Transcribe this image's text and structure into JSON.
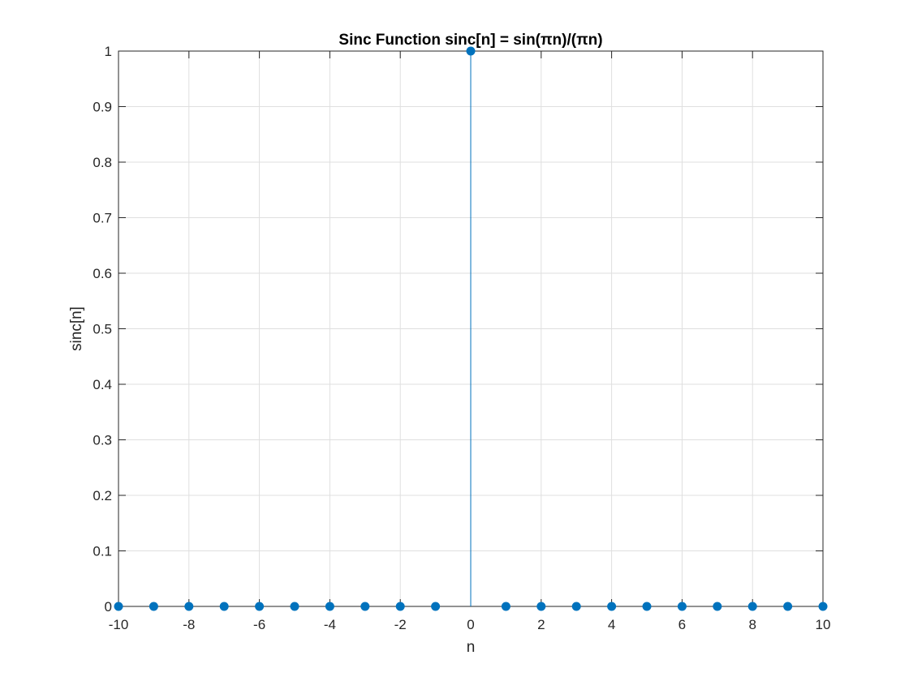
{
  "colors": {
    "stem": "#0072BD",
    "grid": "#DFDFDF",
    "axes": "#262626",
    "background": "#FFFFFF"
  },
  "chart_data": {
    "type": "stem",
    "title": "Sinc Function sinc[n] = sin(πn)/(πn)",
    "xlabel": "n",
    "ylabel": "sinc[n]",
    "xlim": [
      -10,
      10
    ],
    "ylim": [
      0,
      1
    ],
    "grid": true,
    "x_ticks": [
      -10,
      -8,
      -6,
      -4,
      -2,
      0,
      2,
      4,
      6,
      8,
      10
    ],
    "x_tick_labels": [
      "-10",
      "-8",
      "-6",
      "-4",
      "-2",
      "0",
      "2",
      "4",
      "6",
      "8",
      "10"
    ],
    "y_ticks": [
      0,
      0.1,
      0.2,
      0.3,
      0.4,
      0.5,
      0.6,
      0.7,
      0.8,
      0.9,
      1
    ],
    "y_tick_labels": [
      "0",
      "0.1",
      "0.2",
      "0.3",
      "0.4",
      "0.5",
      "0.6",
      "0.7",
      "0.8",
      "0.9",
      "1"
    ],
    "series": [
      {
        "x": [
          -10,
          -9,
          -8,
          -7,
          -6,
          -5,
          -4,
          -3,
          -2,
          -1,
          0,
          1,
          2,
          3,
          4,
          5,
          6,
          7,
          8,
          9,
          10
        ],
        "y": [
          0,
          0,
          0,
          0,
          0,
          0,
          0,
          0,
          0,
          0,
          1,
          0,
          0,
          0,
          0,
          0,
          0,
          0,
          0,
          0,
          0
        ]
      }
    ]
  }
}
